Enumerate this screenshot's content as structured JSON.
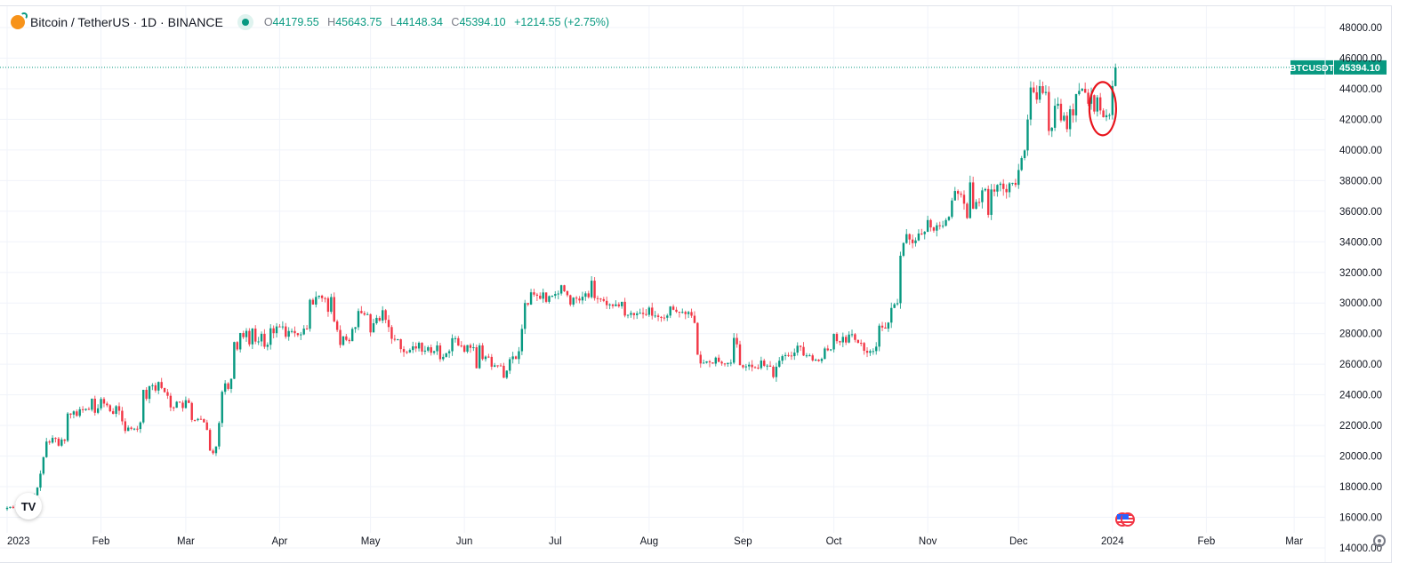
{
  "header": {
    "symbol_title": "Bitcoin / TetherUS · 1D · BINANCE",
    "open_label": "O",
    "open": "44179.55",
    "high_label": "H",
    "high": "45643.75",
    "low_label": "L",
    "low": "44148.34",
    "close_label": "C",
    "close": "45394.10",
    "change": "+1214.55 (+2.75%)"
  },
  "price_tag": {
    "symbol": "BTCUSDT",
    "value": "45394.10"
  },
  "logo_text": "TV",
  "colors": {
    "up": "#089981",
    "down": "#f23645",
    "grid": "#f0f3fa",
    "annotation": "#e8141c"
  },
  "icons": [
    "bitcoin-icon",
    "market-open-dot-icon",
    "tradingview-logo-icon",
    "us-flag-events-icon",
    "settings-gear-icon"
  ],
  "chart_data": {
    "type": "candlestick",
    "title": "Bitcoin / TetherUS · 1D · BINANCE",
    "start_date": "2023-01-01",
    "interval": "1D",
    "ylim": [
      14000,
      48000
    ],
    "y_ticks": [
      "14000.00",
      "16000.00",
      "18000.00",
      "20000.00",
      "22000.00",
      "24000.00",
      "26000.00",
      "28000.00",
      "30000.00",
      "32000.00",
      "34000.00",
      "36000.00",
      "38000.00",
      "40000.00",
      "42000.00",
      "44000.00",
      "46000.00",
      "48000.00"
    ],
    "x_ticks": [
      {
        "label": "2023",
        "day": 0
      },
      {
        "label": "Feb",
        "day": 31
      },
      {
        "label": "Mar",
        "day": 59
      },
      {
        "label": "Apr",
        "day": 90
      },
      {
        "label": "May",
        "day": 120
      },
      {
        "label": "Jun",
        "day": 151
      },
      {
        "label": "Jul",
        "day": 181
      },
      {
        "label": "Aug",
        "day": 212
      },
      {
        "label": "Sep",
        "day": 243
      },
      {
        "label": "Oct",
        "day": 273
      },
      {
        "label": "Nov",
        "day": 304
      },
      {
        "label": "Dec",
        "day": 334
      },
      {
        "label": "2024",
        "day": 365
      },
      {
        "label": "Feb",
        "day": 396
      },
      {
        "label": "Mar",
        "day": 425
      }
    ],
    "first_open": 16540,
    "closes": [
      16620,
      16680,
      16670,
      16850,
      16830,
      16950,
      16950,
      17130,
      17180,
      17440,
      17940,
      18850,
      19930,
      20950,
      20880,
      21190,
      21140,
      20680,
      21080,
      21000,
      22780,
      22710,
      22920,
      22630,
      23060,
      23010,
      23080,
      23030,
      23750,
      22830,
      23120,
      23730,
      23430,
      23320,
      22930,
      22760,
      23260,
      22960,
      22270,
      21640,
      21860,
      21780,
      21790,
      21770,
      22200,
      24330,
      23740,
      24570,
      24630,
      24280,
      24840,
      24450,
      24180,
      23940,
      23180,
      23160,
      23550,
      23490,
      23140,
      23650,
      23470,
      22360,
      22350,
      22430,
      22410,
      22200,
      21710,
      20360,
      20190,
      20630,
      22160,
      24200,
      24750,
      24390,
      25050,
      27450,
      26970,
      28040,
      27770,
      28180,
      27300,
      28330,
      27480,
      27490,
      27990,
      27140,
      27270,
      28350,
      28030,
      28470,
      28450,
      28470,
      27800,
      28170,
      28170,
      28030,
      27910,
      27950,
      28330,
      28320,
      30210,
      29900,
      30400,
      30480,
      30320,
      30310,
      29430,
      30390,
      28800,
      28240,
      27260,
      27820,
      27590,
      27510,
      28310,
      28420,
      29480,
      29340,
      29240,
      29270,
      28080,
      28680,
      29030,
      28850,
      29530,
      28900,
      28430,
      27660,
      27630,
      27630,
      26990,
      26800,
      26780,
      26930,
      27170,
      27030,
      27400,
      26830,
      26890,
      27110,
      26750,
      26850,
      27230,
      26330,
      26480,
      26720,
      26850,
      27700,
      27700,
      27220,
      27210,
      26820,
      27250,
      27070,
      27110,
      25740,
      27230,
      26340,
      26500,
      26480,
      25840,
      25930,
      25920,
      25900,
      25120,
      25580,
      26330,
      26510,
      26340,
      26850,
      28310,
      30000,
      29900,
      30700,
      30550,
      30480,
      30280,
      30690,
      30080,
      30450,
      30480,
      30590,
      30620,
      31160,
      30770,
      30510,
      29900,
      30350,
      30290,
      30170,
      30410,
      30630,
      30380,
      31460,
      30320,
      30290,
      30250,
      30140,
      29860,
      29910,
      29800,
      29910,
      29790,
      30080,
      29180,
      29230,
      29350,
      29210,
      29320,
      29360,
      29280,
      29230,
      29700,
      29170,
      29180,
      29090,
      29050,
      29040,
      29180,
      29770,
      29560,
      29430,
      29400,
      29420,
      29280,
      29410,
      29170,
      28700,
      26620,
      26050,
      26100,
      26190,
      26120,
      26040,
      26430,
      26160,
      26050,
      26010,
      26090,
      26100,
      27720,
      27300,
      25940,
      25800,
      25860,
      25970,
      25810,
      25780,
      25750,
      26240,
      25900,
      25910,
      25840,
      25160,
      25840,
      26230,
      26530,
      26600,
      26570,
      26530,
      26760,
      27210,
      27130,
      26570,
      26580,
      26580,
      26250,
      26300,
      26210,
      26350,
      27030,
      26910,
      26970,
      27980,
      27510,
      27430,
      27790,
      27420,
      27940,
      27960,
      27590,
      27400,
      27390,
      26880,
      26750,
      26860,
      26860,
      27150,
      28520,
      28400,
      28330,
      28720,
      29680,
      29920,
      29990,
      33090,
      33920,
      34500,
      34150,
      33910,
      34090,
      34540,
      34500,
      34650,
      35420,
      34940,
      34730,
      35080,
      35020,
      35050,
      35420,
      35630,
      36700,
      37320,
      37140,
      37070,
      36490,
      35550,
      37880,
      36160,
      36600,
      36590,
      37360,
      37450,
      35760,
      37420,
      37280,
      37720,
      37800,
      37450,
      37240,
      37820,
      37850,
      37720,
      38690,
      39470,
      39970,
      41990,
      44080,
      43770,
      43290,
      44170,
      43720,
      43790,
      41240,
      41450,
      42890,
      43020,
      41930,
      42240,
      41360,
      42660,
      42260,
      43650,
      43860,
      43990,
      43740,
      43020,
      43580,
      42510,
      43440,
      42580,
      42140,
      42270,
      42280,
      44179.55,
      45394.1
    ],
    "last_candle": {
      "open": 44179.55,
      "high": 45643.75,
      "low": 44148.34,
      "close": 45394.1
    },
    "last_price": 45394.1,
    "annotation": {
      "type": "ellipse",
      "around_days": [
        359,
        364
      ],
      "note": "red circle highlighting late-December pullback"
    }
  }
}
